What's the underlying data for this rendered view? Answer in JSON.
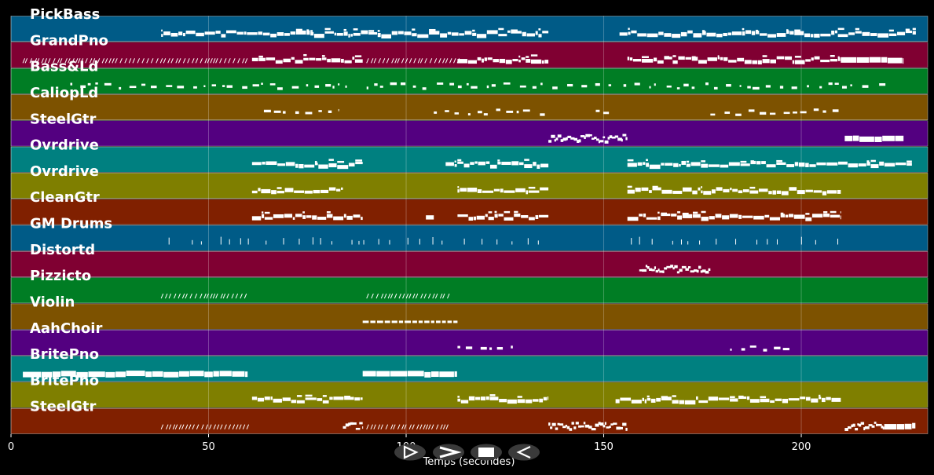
{
  "chart_data": {
    "type": "piano-roll",
    "xlabel": "Temps (secondes)",
    "xlim": [
      0,
      232
    ],
    "xticks": [
      0,
      50,
      100,
      150,
      200
    ],
    "grid": "vertical",
    "track_colors": [
      "#005b87",
      "#800032",
      "#007d24",
      "#7d5200",
      "#530080",
      "#008080",
      "#7f7f00",
      "#802000"
    ],
    "tracks": [
      {
        "name": "PickBass",
        "style": "dense",
        "segments": [
          [
            38,
            136
          ],
          [
            154,
            229
          ]
        ]
      },
      {
        "name": "GrandPno",
        "style": "mixed",
        "segments": [
          [
            3,
            60,
            "diag"
          ],
          [
            61,
            89,
            "dense"
          ],
          [
            90,
            113,
            "diag"
          ],
          [
            113,
            136,
            "dense"
          ],
          [
            156,
            210,
            "dense"
          ],
          [
            210,
            226,
            "block"
          ]
        ]
      },
      {
        "name": "Bass&Ld",
        "style": "sparse",
        "segments": [
          [
            15,
            85
          ],
          [
            90,
            136
          ],
          [
            137,
            152
          ],
          [
            155,
            222
          ]
        ]
      },
      {
        "name": "CaliopLd",
        "style": "sparse",
        "segments": [
          [
            64,
            83
          ],
          [
            107,
            136
          ],
          [
            148,
            152
          ],
          [
            177,
            210
          ]
        ]
      },
      {
        "name": "SteelGtr",
        "style": "cluster",
        "segments": [
          [
            136,
            156
          ],
          [
            211,
            226,
            "block"
          ]
        ]
      },
      {
        "name": "Ovrdrive",
        "style": "dense",
        "segments": [
          [
            61,
            89
          ],
          [
            110,
            136
          ],
          [
            156,
            228
          ]
        ]
      },
      {
        "name": "Ovrdrive",
        "style": "dense",
        "segments": [
          [
            61,
            84
          ],
          [
            113,
            136
          ],
          [
            156,
            210
          ]
        ]
      },
      {
        "name": "CleanGtr",
        "style": "dense",
        "segments": [
          [
            61,
            89
          ],
          [
            105,
            107
          ],
          [
            113,
            136
          ],
          [
            156,
            210
          ]
        ]
      },
      {
        "name": "GM Drums",
        "style": "drums",
        "segments": [
          [
            40,
            136
          ],
          [
            157,
            210
          ]
        ]
      },
      {
        "name": "Distortd",
        "style": "cluster",
        "segments": [
          [
            159,
            177
          ]
        ]
      },
      {
        "name": "Pizzicto",
        "style": "diag",
        "segments": [
          [
            38,
            60
          ],
          [
            90,
            111
          ]
        ]
      },
      {
        "name": "Violin",
        "style": "line",
        "segments": [
          [
            89,
            113
          ]
        ]
      },
      {
        "name": "AahChoir",
        "style": "sparse",
        "segments": [
          [
            113,
            122
          ],
          [
            123,
            127
          ],
          [
            182,
            197
          ]
        ]
      },
      {
        "name": "BritePno",
        "style": "block",
        "segments": [
          [
            3,
            60
          ],
          [
            89,
            113
          ]
        ]
      },
      {
        "name": "BritePno",
        "style": "dense",
        "segments": [
          [
            61,
            89
          ],
          [
            113,
            136
          ],
          [
            153,
            210
          ]
        ]
      },
      {
        "name": "SteelGtr",
        "style": "mixed",
        "segments": [
          [
            38,
            60,
            "diag"
          ],
          [
            84,
            89,
            "cluster"
          ],
          [
            90,
            111,
            "diag"
          ],
          [
            136,
            156,
            "cluster"
          ],
          [
            211,
            221,
            "cluster"
          ],
          [
            221,
            229,
            "block"
          ]
        ]
      }
    ]
  },
  "controls": [
    {
      "name": "play-button",
      "glyph": "play"
    },
    {
      "name": "fast-forward-button",
      "glyph": "forward"
    },
    {
      "name": "stop-button",
      "glyph": "stop"
    },
    {
      "name": "rewind-button",
      "glyph": "back"
    }
  ]
}
